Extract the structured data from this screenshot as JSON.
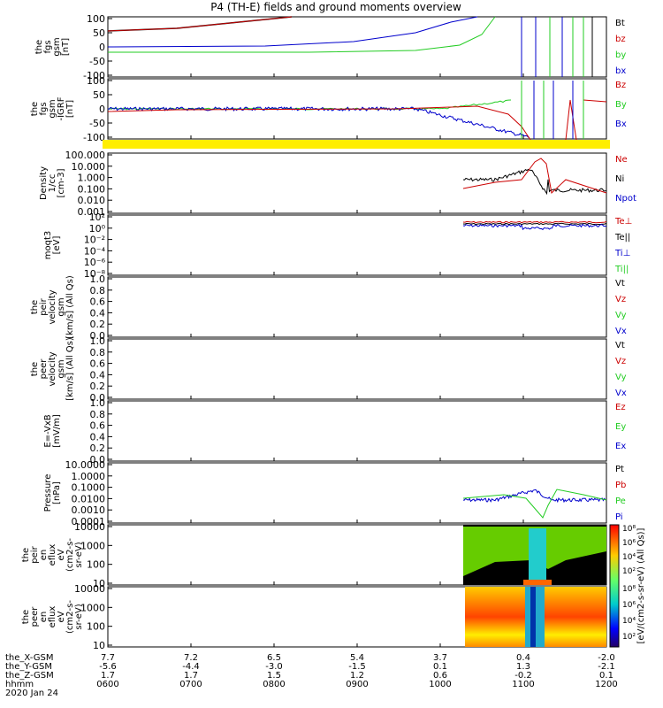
{
  "title": "P4 (TH-E) fields and ground moments overview",
  "footer": {
    "date": "2020 Jan 24",
    "row_labels": [
      "the_X-GSM",
      "the_Y-GSM",
      "the_Z-GSM",
      "hhmm"
    ]
  },
  "colors": {
    "black": "#000000",
    "red": "#cc0000",
    "green": "#22cc22",
    "blue": "#0000cc",
    "yellow": "#ffee00"
  },
  "chart_data": {
    "type": "line",
    "x_ticks": [
      "0600",
      "0700",
      "0800",
      "0900",
      "1000",
      "1100",
      "1200"
    ],
    "orbit": {
      "x": [
        "7.7",
        "7.2",
        "6.5",
        "5.4",
        "3.7",
        "0.4",
        "-2.0"
      ],
      "y": [
        "-5.6",
        "-4.4",
        "-3.0",
        "-1.5",
        "0.1",
        "1.3",
        "-2.1"
      ],
      "z": [
        "1.7",
        "1.7",
        "1.5",
        "1.2",
        "0.6",
        "-0.2",
        "0.1"
      ]
    },
    "panels": [
      {
        "id": "fgs",
        "ylabel": [
          "the",
          "fgs",
          "gsm",
          "[nT]"
        ],
        "ticks": [
          "100",
          "50",
          "0",
          "-50",
          "-100"
        ],
        "legend": [
          {
            "label": "Bt",
            "color": "#000000"
          },
          {
            "label": "bz",
            "color": "#cc0000"
          },
          {
            "label": "by",
            "color": "#22cc22"
          },
          {
            "label": "bx",
            "color": "#0000cc"
          }
        ]
      },
      {
        "id": "fgs2",
        "ylabel": [
          "the",
          "fgs",
          "gsm",
          "-IGRF",
          "[nT]"
        ],
        "ticks": [
          "100",
          "50",
          "0",
          "-50",
          "-100"
        ],
        "legend": [
          {
            "label": "Bz",
            "color": "#cc0000"
          },
          {
            "label": "By",
            "color": "#22cc22"
          },
          {
            "label": "Bx",
            "color": "#0000cc"
          }
        ]
      },
      {
        "id": "density",
        "ylabel": [
          "Density",
          "1/cc",
          "[cm-3]"
        ],
        "ticks": [
          "100.000",
          "10.000",
          "1.000",
          "0.100",
          "0.010",
          "0.001"
        ],
        "legend": [
          {
            "label": "Ne",
            "color": "#cc0000"
          },
          {
            "label": "Ni",
            "color": "#000000"
          },
          {
            "label": "Npot",
            "color": "#0000cc"
          }
        ]
      },
      {
        "id": "temp",
        "ylabel": [
          "moqt3",
          "[eV]"
        ],
        "ticks": [
          "10²",
          "10⁰",
          "10⁻²",
          "10⁻⁴",
          "10⁻⁶",
          "10⁻⁸"
        ],
        "legend": [
          {
            "label": "Te⊥",
            "color": "#cc0000"
          },
          {
            "label": "Te||",
            "color": "#000000"
          },
          {
            "label": "Ti⊥",
            "color": "#0000cc"
          },
          {
            "label": "Ti||",
            "color": "#22cc22"
          }
        ]
      },
      {
        "id": "peir_v",
        "ylabel": [
          "the",
          "peir",
          "velocity",
          "gsm",
          "[km/s] (All Qs)"
        ],
        "ticks": [
          "1.0",
          "0.8",
          "0.6",
          "0.4",
          "0.2",
          "0.0"
        ],
        "legend": [
          {
            "label": "Vt",
            "color": "#000000"
          },
          {
            "label": "Vz",
            "color": "#cc0000"
          },
          {
            "label": "Vy",
            "color": "#22cc22"
          },
          {
            "label": "Vx",
            "color": "#0000cc"
          }
        ]
      },
      {
        "id": "peer_v",
        "ylabel": [
          "the",
          "peer",
          "velocity",
          "gsm",
          "[km/s] (All Qs)"
        ],
        "ticks": [
          "1.0",
          "0.8",
          "0.6",
          "0.4",
          "0.2",
          "0.0"
        ],
        "legend": [
          {
            "label": "Vt",
            "color": "#000000"
          },
          {
            "label": "Vz",
            "color": "#cc0000"
          },
          {
            "label": "Vy",
            "color": "#22cc22"
          },
          {
            "label": "Vx",
            "color": "#0000cc"
          }
        ]
      },
      {
        "id": "efield",
        "ylabel": [
          "E=-VxB",
          "[mV/m]"
        ],
        "ticks": [
          "1.0",
          "0.8",
          "0.6",
          "0.4",
          "0.2",
          "0.0"
        ],
        "legend": [
          {
            "label": "Ez",
            "color": "#cc0000"
          },
          {
            "label": "Ey",
            "color": "#22cc22"
          },
          {
            "label": "Ex",
            "color": "#0000cc"
          }
        ]
      },
      {
        "id": "pressure",
        "ylabel": [
          "Pressure",
          "[nPa]"
        ],
        "ticks": [
          "10.0000",
          "1.0000",
          "0.1000",
          "0.0100",
          "0.0010",
          "0.0001"
        ],
        "legend": [
          {
            "label": "Pt",
            "color": "#000000"
          },
          {
            "label": "Pb",
            "color": "#cc0000"
          },
          {
            "label": "Pe",
            "color": "#22cc22"
          },
          {
            "label": "Pi",
            "color": "#0000cc"
          }
        ]
      },
      {
        "id": "peir_spec",
        "ylabel": [
          "the",
          "peir",
          "en",
          "eflux",
          "eV",
          "(cm2-s-",
          "sr-eV)"
        ],
        "ticks": [
          "10000",
          "1000",
          "100",
          "10"
        ]
      },
      {
        "id": "peer_spec",
        "ylabel": [
          "the",
          "peer",
          "en",
          "eflux",
          "eV",
          "(cm2-s-",
          "sr-eV)"
        ],
        "ticks": [
          "10000",
          "1000",
          "100",
          "10"
        ]
      }
    ],
    "colorbar": {
      "label": "[eV/(cm2-s-sr-eV) (All Qs)]",
      "ticks_top": [
        "10⁸",
        "10⁶",
        "10⁴",
        "10²"
      ],
      "ticks_bottom": [
        "10⁸",
        "10⁶",
        "10⁴",
        "10²"
      ]
    }
  }
}
